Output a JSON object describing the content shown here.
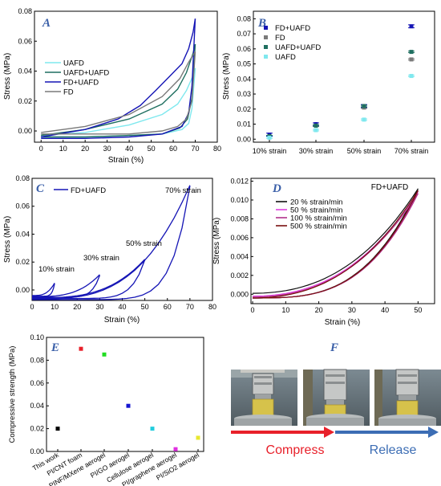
{
  "colors": {
    "ua_line": "#7fe8ee",
    "uafd_line": "#1f6f60",
    "fduafd_line": "#1515b5",
    "fd_line": "#7a7a7a",
    "panel_label": "#3a5fa8",
    "compress_arrow": "#e8202a",
    "release_arrow": "#3c6db4",
    "rate_20": "#111111",
    "rate_50": "#e040e0",
    "rate_100": "#b0308a",
    "rate_500": "#7a1010"
  },
  "panels": {
    "A": {
      "label": "A"
    },
    "B": {
      "label": "B"
    },
    "C": {
      "label": "C"
    },
    "D": {
      "label": "D"
    },
    "E": {
      "label": "E"
    },
    "F": {
      "label": "F"
    }
  },
  "photos": {
    "compress_label": "Compress",
    "release_label": "Release",
    "icon": "compression-test-photo"
  },
  "chart_data": [
    {
      "id": "A",
      "type": "line",
      "xlabel": "Strain (%)",
      "ylabel": "Stress (MPa)",
      "xlim": [
        0,
        80
      ],
      "ylim": [
        -0.005,
        0.08
      ],
      "xticks": [
        "0",
        "10",
        "20",
        "30",
        "40",
        "50",
        "60",
        "70",
        "80"
      ],
      "yticks": [
        "0.00",
        "0.02",
        "0.04",
        "0.06",
        "0.08"
      ],
      "legend_position": "left",
      "series": [
        {
          "name": "UAFD",
          "color_key": "ua_line",
          "loading": [
            [
              0,
              -0.003
            ],
            [
              20,
              -0.001
            ],
            [
              40,
              0.004
            ],
            [
              55,
              0.011
            ],
            [
              62,
              0.018
            ],
            [
              66,
              0.027
            ],
            [
              69,
              0.037
            ],
            [
              70,
              0.042
            ]
          ],
          "unloading": [
            [
              70,
              0.042
            ],
            [
              68.5,
              0.015
            ],
            [
              67,
              0.005
            ],
            [
              64,
              0.001
            ],
            [
              55,
              -0.002
            ],
            [
              40,
              -0.003
            ],
            [
              20,
              -0.004
            ],
            [
              0,
              -0.004
            ]
          ]
        },
        {
          "name": "UAFD+UAFD",
          "color_key": "uafd_line",
          "loading": [
            [
              0,
              -0.003
            ],
            [
              20,
              0.001
            ],
            [
              40,
              0.008
            ],
            [
              55,
              0.018
            ],
            [
              62,
              0.028
            ],
            [
              66,
              0.039
            ],
            [
              69,
              0.052
            ],
            [
              70,
              0.058
            ]
          ],
          "unloading": [
            [
              70,
              0.058
            ],
            [
              68.5,
              0.022
            ],
            [
              66.5,
              0.008
            ],
            [
              63,
              0.002
            ],
            [
              55,
              -0.002
            ],
            [
              40,
              -0.003
            ],
            [
              20,
              -0.004
            ],
            [
              0,
              -0.004
            ]
          ]
        },
        {
          "name": "FD+UAFD",
          "color_key": "fduafd_line",
          "loading": [
            [
              0,
              -0.004
            ],
            [
              20,
              0.001
            ],
            [
              35,
              0.008
            ],
            [
              45,
              0.017
            ],
            [
              52,
              0.027
            ],
            [
              58,
              0.036
            ],
            [
              64,
              0.045
            ],
            [
              67,
              0.055
            ],
            [
              69,
              0.066
            ],
            [
              70,
              0.075
            ]
          ],
          "unloading": [
            [
              70,
              0.075
            ],
            [
              68.5,
              0.03
            ],
            [
              67,
              0.012
            ],
            [
              64,
              0.003
            ],
            [
              55,
              -0.002
            ],
            [
              40,
              -0.004
            ],
            [
              20,
              -0.005
            ],
            [
              0,
              -0.005
            ]
          ]
        },
        {
          "name": "FD",
          "color_key": "fd_line",
          "loading": [
            [
              0,
              -0.001
            ],
            [
              20,
              0.003
            ],
            [
              40,
              0.011
            ],
            [
              55,
              0.023
            ],
            [
              63,
              0.035
            ],
            [
              67,
              0.046
            ],
            [
              70,
              0.053
            ]
          ],
          "unloading": [
            [
              70,
              0.053
            ],
            [
              68.5,
              0.02
            ],
            [
              66,
              0.008
            ],
            [
              62,
              0.003
            ],
            [
              55,
              0.0
            ],
            [
              40,
              -0.002
            ],
            [
              20,
              -0.002
            ],
            [
              0,
              -0.002
            ]
          ]
        }
      ]
    },
    {
      "id": "B",
      "type": "scatter",
      "xlabel": "",
      "ylabel": "Stress (MPa)",
      "ylim": [
        0,
        0.08
      ],
      "yticks": [
        "0.00",
        "0.01",
        "0.02",
        "0.03",
        "0.04",
        "0.05",
        "0.06",
        "0.07",
        "0.08"
      ],
      "categories": [
        "10% strain",
        "30% strain",
        "50% strain",
        "70% strain"
      ],
      "legend_position": "top-left",
      "series": [
        {
          "name": "FD+UAFD",
          "color_key": "fduafd_line",
          "values": [
            0.003,
            0.01,
            0.022,
            0.075
          ],
          "errors": [
            0.001,
            0.0008,
            0.001,
            0.001
          ]
        },
        {
          "name": "FD",
          "color_key": "fd_line",
          "values": [
            0.002,
            0.009,
            0.021,
            0.053
          ],
          "errors": [
            0.0005,
            0.0005,
            0.0005,
            0.0005
          ]
        },
        {
          "name": "UAFD+UAFD",
          "color_key": "uafd_line",
          "values": [
            0.002,
            0.009,
            0.022,
            0.058
          ],
          "errors": [
            0.0005,
            0.0005,
            0.0005,
            0.0005
          ]
        },
        {
          "name": "UAFD",
          "color_key": "ua_line",
          "values": [
            0.001,
            0.006,
            0.013,
            0.042
          ],
          "errors": [
            0.0005,
            0.0005,
            0.0005,
            0.0005
          ]
        }
      ]
    },
    {
      "id": "C",
      "type": "line",
      "xlabel": "Strain (%)",
      "ylabel": "Stress (MPa)",
      "xlim": [
        0,
        80
      ],
      "ylim": [
        -0.005,
        0.08
      ],
      "xticks": [
        "0",
        "10",
        "20",
        "30",
        "40",
        "50",
        "60",
        "70",
        "80"
      ],
      "yticks": [
        "0.00",
        "0.02",
        "0.04",
        "0.06",
        "0.08"
      ],
      "legend_position": "top-left",
      "legend": "FD+UAFD",
      "annotations": [
        "10% strain",
        "30% strain",
        "50% strain",
        "70% strain"
      ],
      "cycles": [
        {
          "max_strain": 10,
          "max_stress": 0.005
        },
        {
          "max_strain": 30,
          "max_stress": 0.011
        },
        {
          "max_strain": 50,
          "max_stress": 0.022
        },
        {
          "max_strain": 70,
          "max_stress": 0.075
        }
      ]
    },
    {
      "id": "D",
      "type": "line",
      "xlabel": "Strain (%)",
      "ylabel": "Stress (MPa)",
      "xlim": [
        0,
        55
      ],
      "ylim": [
        -0.001,
        0.012
      ],
      "xticks": [
        "0",
        "10",
        "20",
        "30",
        "40",
        "50"
      ],
      "yticks": [
        "0.000",
        "0.002",
        "0.004",
        "0.006",
        "0.008",
        "0.010",
        "0.012"
      ],
      "legend_position": "top-left",
      "title": "FD+UAFD",
      "series": [
        {
          "name": "20 % strain/min",
          "color_key": "rate_20",
          "max_stress": 0.0112,
          "start_stress": 0.0001
        },
        {
          "name": "50 % strain/min",
          "color_key": "rate_50",
          "max_stress": 0.0109,
          "start_stress": -0.0002
        },
        {
          "name": "100 % strain/min",
          "color_key": "rate_100",
          "max_stress": 0.0107,
          "start_stress": -0.0003
        },
        {
          "name": "500 % strain/min",
          "color_key": "rate_500",
          "max_stress": 0.011,
          "start_stress": -0.0004
        }
      ]
    },
    {
      "id": "E",
      "type": "scatter",
      "xlabel": "",
      "ylabel": "Compressive strength (MPa)",
      "ylim": [
        0,
        0.1
      ],
      "yticks": [
        "0.00",
        "0.02",
        "0.04",
        "0.06",
        "0.08",
        "0.10"
      ],
      "categories": [
        "This work",
        "PI/CNT foam",
        "PINF/MXene aerogel",
        "PI/GO aerogel",
        "Cellulose aerogel",
        "PI/graphene aerogel",
        "PI/SiO2 aerogel"
      ],
      "values": [
        0.02,
        0.09,
        0.085,
        0.04,
        0.02,
        0.002,
        0.012
      ],
      "point_colors": [
        "#000000",
        "#e8202a",
        "#22dd22",
        "#1515d0",
        "#22ccdd",
        "#e030e0",
        "#e8e830"
      ]
    }
  ]
}
